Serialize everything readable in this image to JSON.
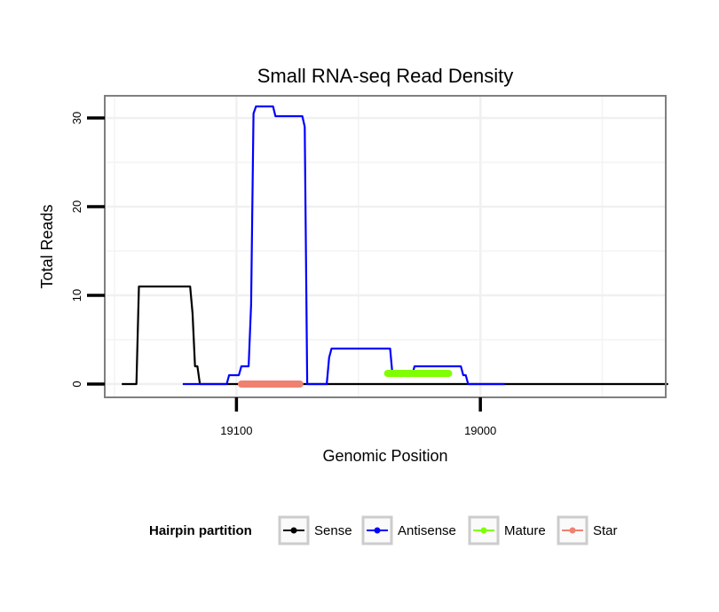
{
  "chart_data": {
    "type": "line",
    "title": "Small RNA-seq Read Density",
    "xlabel": "Genomic Position",
    "ylabel": "Total Reads",
    "xlim": [
      19154,
      18924
    ],
    "x_reversed": true,
    "ylim": [
      -1.5,
      32.5
    ],
    "x_ticks": [
      19100,
      19000
    ],
    "x_tick_labels": [
      "19100",
      "19000"
    ],
    "y_ticks": [
      0,
      10,
      20,
      30
    ],
    "y_tick_labels": [
      "0",
      "10",
      "20",
      "30"
    ],
    "grid": true,
    "legend": {
      "title": "Hairpin partition",
      "placement": "bottom",
      "entries": [
        "Sense",
        "Antisense",
        "Mature",
        "Star"
      ]
    },
    "series": [
      {
        "name": "Sense",
        "color": "#000000",
        "points": [
          [
            19147,
            0
          ],
          [
            19141,
            0
          ],
          [
            19140,
            11
          ],
          [
            19134,
            11
          ],
          [
            19122,
            11
          ],
          [
            19119,
            11
          ],
          [
            19118,
            8
          ],
          [
            19117,
            2
          ],
          [
            19116,
            2
          ],
          [
            19115,
            0
          ],
          [
            19080,
            0
          ],
          [
            18923,
            0
          ]
        ]
      },
      {
        "name": "Antisense",
        "color": "#0000FF",
        "points": [
          [
            19122,
            0
          ],
          [
            19104,
            0
          ],
          [
            19103,
            1
          ],
          [
            19099,
            1
          ],
          [
            19098,
            2
          ],
          [
            19095,
            2
          ],
          [
            19094,
            9
          ],
          [
            19093,
            30.5
          ],
          [
            19092,
            31.3
          ],
          [
            19085,
            31.3
          ],
          [
            19084,
            30.2
          ],
          [
            19073,
            30.2
          ],
          [
            19072,
            29
          ],
          [
            19071,
            0
          ],
          [
            19063,
            0
          ],
          [
            19062,
            3
          ],
          [
            19061,
            4
          ],
          [
            19037,
            4
          ],
          [
            19036,
            1
          ],
          [
            19028,
            1
          ],
          [
            19027,
            2
          ],
          [
            19008,
            2
          ],
          [
            19007,
            1
          ],
          [
            19006,
            1
          ],
          [
            19005,
            0
          ],
          [
            18990,
            0
          ]
        ]
      },
      {
        "name": "Mature",
        "color": "#7FFF00",
        "points": [
          [
            19038,
            1.2
          ],
          [
            19013,
            1.2
          ]
        ]
      },
      {
        "name": "Star",
        "color": "#F08070",
        "points": [
          [
            19098,
            0
          ],
          [
            19074,
            0
          ]
        ]
      }
    ]
  }
}
